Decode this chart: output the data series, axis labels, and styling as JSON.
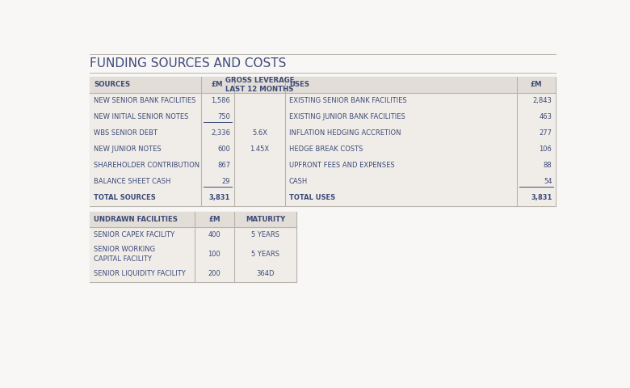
{
  "title": "FUNDING SOURCES AND COSTS",
  "bg_color": "#f0ede8",
  "header_bg": "#e2ddd6",
  "text_color": "#3d4a7a",
  "border_color": "#b8b4ac",
  "page_bg": "#f8f7f5",
  "top_table": {
    "sources_headers": [
      "SOURCES",
      "£M",
      "GROSS LEVERAGE\nLAST 12 MONTHS"
    ],
    "sources_rows": [
      [
        "NEW SENIOR BANK FACILITIES",
        "1,586",
        ""
      ],
      [
        "NEW INITIAL SENIOR NOTES",
        "750",
        ""
      ],
      [
        "WBS SENIOR DEBT",
        "2,336",
        "5.6X"
      ],
      [
        "NEW JUNIOR NOTES",
        "600",
        "1.45X"
      ],
      [
        "SHAREHOLDER CONTRIBUTION",
        "867",
        ""
      ],
      [
        "BALANCE SHEET CASH",
        "29",
        ""
      ],
      [
        "TOTAL SOURCES",
        "3,831",
        ""
      ]
    ],
    "uses_headers": [
      "USES",
      "£M"
    ],
    "uses_rows": [
      [
        "EXISTING SENIOR BANK FACILITIES",
        "2,843"
      ],
      [
        "EXISTING JUNIOR BANK FACILITIES",
        "463"
      ],
      [
        "INFLATION HEDGING ACCRETION",
        "277"
      ],
      [
        "HEDGE BREAK COSTS",
        "106"
      ],
      [
        "UPFRONT FEES AND EXPENSES",
        "88"
      ],
      [
        "CASH",
        "54"
      ],
      [
        "TOTAL USES",
        "3,831"
      ]
    ],
    "underline_after_sources": [
      1,
      5
    ],
    "underline_after_uses": [
      5
    ]
  },
  "bottom_table": {
    "headers": [
      "UNDRAWN FACILITIES",
      "£M",
      "MATURITY"
    ],
    "rows": [
      [
        "SENIOR CAPEX FACILITY",
        "400",
        "5 YEARS"
      ],
      [
        "SENIOR WORKING\nCAPITAL FACILITY",
        "100",
        "5 YEARS"
      ],
      [
        "SENIOR LIQUIDITY FACILITY",
        "200",
        "364D"
      ]
    ]
  }
}
